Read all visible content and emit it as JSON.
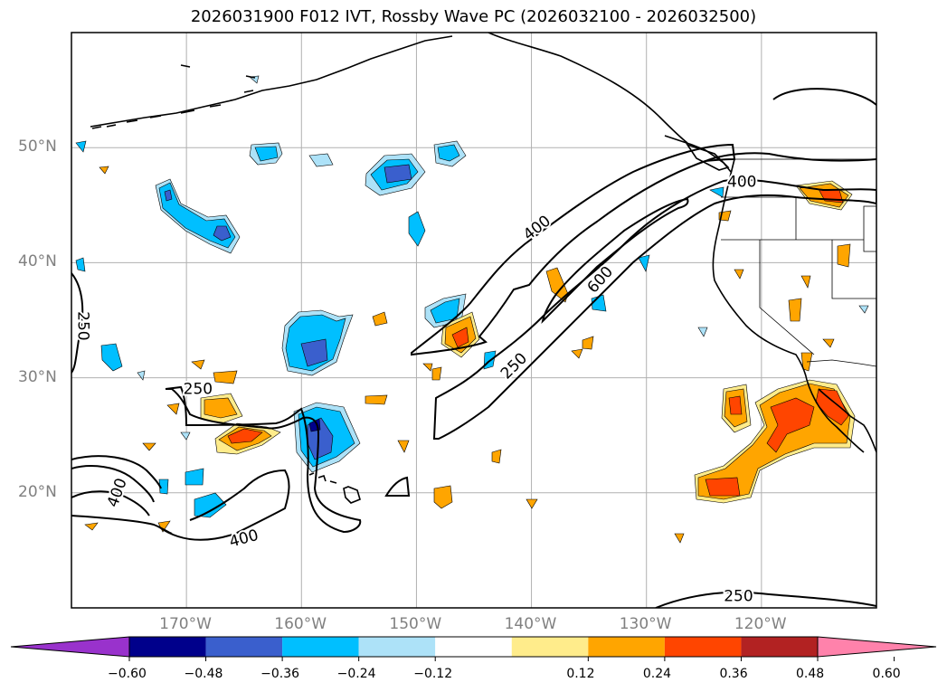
{
  "title": "2026031900 F012 IVT, Rossby Wave PC (2026032100 - 2026032500)",
  "map": {
    "lat_range": [
      10,
      60
    ],
    "lon_range": [
      -180,
      -110
    ],
    "lat_labels": [
      {
        "lat": 50,
        "text": "50°N"
      },
      {
        "lat": 40,
        "text": "40°N"
      },
      {
        "lat": 30,
        "text": "30°N"
      },
      {
        "lat": 20,
        "text": "20°N"
      }
    ],
    "lon_labels": [
      {
        "lon": -170,
        "text": "170°W"
      },
      {
        "lon": -160,
        "text": "160°W"
      },
      {
        "lon": -150,
        "text": "150°W"
      },
      {
        "lon": -140,
        "text": "140°W"
      },
      {
        "lon": -130,
        "text": "130°W"
      },
      {
        "lon": -120,
        "text": "120°W"
      }
    ],
    "ivt_contour_labels": [
      {
        "text": "250",
        "lon": -179,
        "lat": 34.5,
        "rotate": 90
      },
      {
        "text": "250",
        "lon": -169,
        "lat": 29,
        "rotate": 0
      },
      {
        "text": "400",
        "lon": -176,
        "lat": 20,
        "rotate": -70
      },
      {
        "text": "400",
        "lon": -165,
        "lat": 16,
        "rotate": -15
      },
      {
        "text": "400",
        "lon": -139.5,
        "lat": 43,
        "rotate": -38
      },
      {
        "text": "600",
        "lon": -134,
        "lat": 38.5,
        "rotate": -48
      },
      {
        "text": "250",
        "lon": -141.5,
        "lat": 31,
        "rotate": -45
      },
      {
        "text": "400",
        "lon": -121.7,
        "lat": 47,
        "rotate": 0
      },
      {
        "text": "250",
        "lon": -122,
        "lat": 11,
        "rotate": 0
      }
    ]
  },
  "colorbar": {
    "colors": [
      "#9932CC",
      "#00008B",
      "#3A5FCD",
      "#00BFFF",
      "#ADE2F8",
      "#FFFFFF",
      "#FFEC8B",
      "#FFA500",
      "#FF4500",
      "#B22222",
      "#FF82AB"
    ],
    "ticks": [
      "−0.60",
      "−0.48",
      "−0.36",
      "−0.24",
      "−0.12",
      "0.12",
      "0.24",
      "0.36",
      "0.48",
      "0.60"
    ]
  }
}
